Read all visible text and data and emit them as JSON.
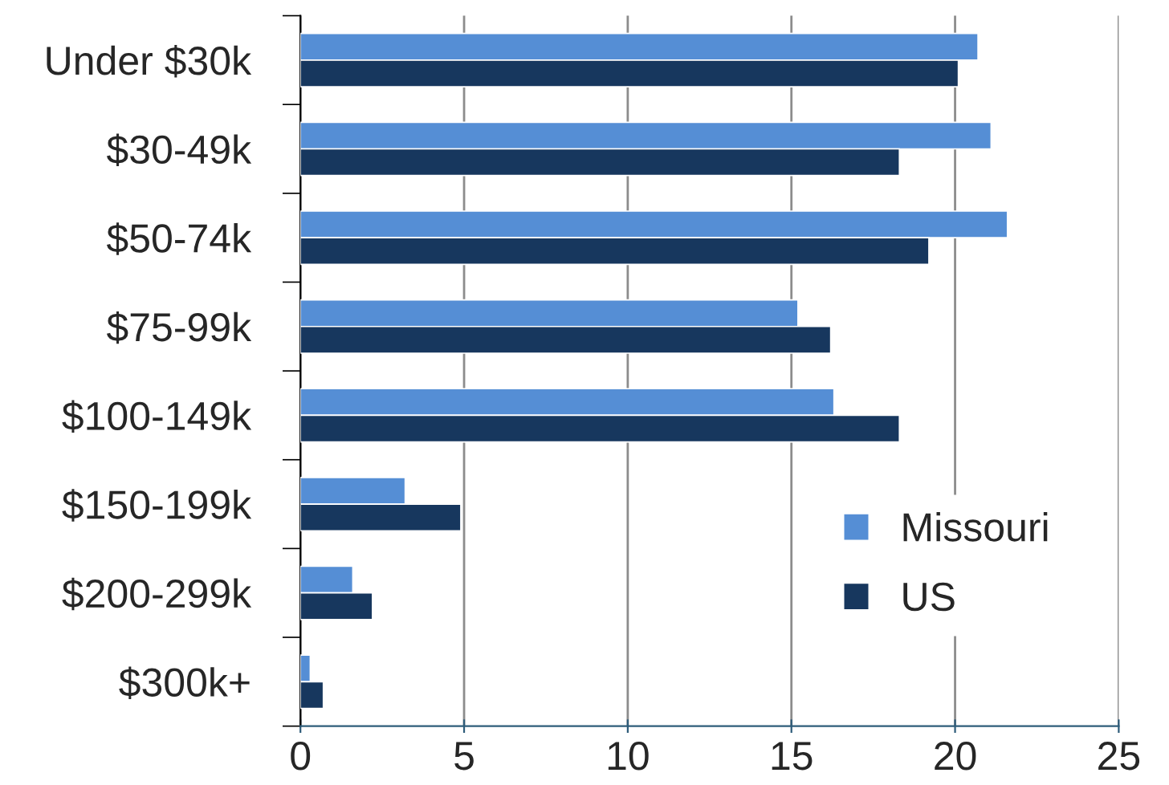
{
  "chart_data": {
    "type": "bar",
    "orientation": "horizontal",
    "categories": [
      "Under $30k",
      "$30-49k",
      "$50-74k",
      "$75-99k",
      "$100-149k",
      "$150-199k",
      "$200-299k",
      "$300k+"
    ],
    "series": [
      {
        "name": "Missouri",
        "color": "#558ed5",
        "values": [
          20.7,
          21.1,
          21.6,
          15.2,
          16.3,
          3.2,
          1.6,
          0.3
        ]
      },
      {
        "name": "US",
        "color": "#17375e",
        "values": [
          20.1,
          18.3,
          19.2,
          16.2,
          18.3,
          4.9,
          2.2,
          0.7
        ]
      }
    ],
    "xlim": [
      0,
      25
    ],
    "xticks": [
      0,
      5,
      10,
      15,
      20,
      25
    ],
    "grid": "x",
    "legend": "bottom right"
  }
}
